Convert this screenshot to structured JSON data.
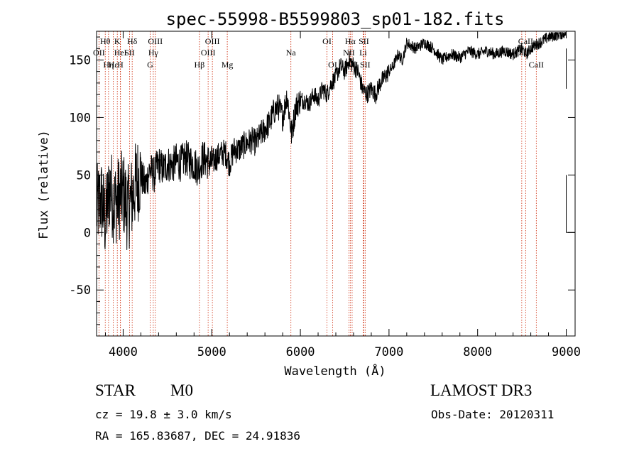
{
  "chart_data": {
    "type": "line",
    "title": "spec-55998-B5599803_sp01-182.fits",
    "xlabel": "Wavelength (Å)",
    "ylabel": "Flux (relative)",
    "xlim": [
      3700,
      9100
    ],
    "ylim": [
      -90,
      175
    ],
    "x_ticks": [
      4000,
      5000,
      6000,
      7000,
      8000,
      9000
    ],
    "y_ticks": [
      -50,
      0,
      50,
      100,
      150
    ],
    "series": [
      {
        "name": "flux",
        "x": [
          3700,
          3750,
          3800,
          3850,
          3900,
          3950,
          4000,
          4050,
          4100,
          4150,
          4200,
          4250,
          4300,
          4350,
          4400,
          4450,
          4500,
          4550,
          4600,
          4650,
          4700,
          4750,
          4800,
          4850,
          4900,
          4950,
          5000,
          5050,
          5100,
          5150,
          5200,
          5250,
          5300,
          5350,
          5400,
          5450,
          5500,
          5550,
          5600,
          5650,
          5700,
          5750,
          5800,
          5850,
          5900,
          5950,
          6000,
          6050,
          6100,
          6150,
          6200,
          6250,
          6300,
          6350,
          6400,
          6450,
          6500,
          6550,
          6600,
          6650,
          6700,
          6750,
          6800,
          6850,
          6900,
          6950,
          7000,
          7050,
          7100,
          7150,
          7200,
          7300,
          7400,
          7500,
          7600,
          7700,
          7800,
          7900,
          8000,
          8100,
          8200,
          8300,
          8400,
          8500,
          8550,
          8600,
          8650,
          8700,
          8800,
          8900,
          8950,
          9000
        ],
        "y": [
          20,
          30,
          10,
          40,
          25,
          30,
          35,
          20,
          30,
          45,
          50,
          40,
          55,
          50,
          60,
          55,
          60,
          58,
          62,
          60,
          65,
          62,
          60,
          55,
          65,
          62,
          60,
          65,
          68,
          70,
          60,
          72,
          72,
          75,
          78,
          80,
          78,
          85,
          90,
          95,
          105,
          110,
          100,
          120,
          85,
          110,
          115,
          115,
          112,
          120,
          115,
          125,
          120,
          130,
          135,
          145,
          140,
          150,
          145,
          140,
          125,
          120,
          125,
          120,
          130,
          135,
          140,
          145,
          155,
          150,
          165,
          160,
          165,
          160,
          150,
          155,
          152,
          158,
          155,
          158,
          155,
          158,
          155,
          160,
          155,
          160,
          163,
          165,
          170,
          172,
          173,
          174
        ]
      }
    ],
    "emission_lines": [
      {
        "label": "Hθ",
        "wavelength": 3798,
        "row": 1
      },
      {
        "label": "OII",
        "wavelength": 3727,
        "row": 2
      },
      {
        "label": "Hε",
        "wavelength": 3889,
        "row": 3
      },
      {
        "label": "Hη",
        "wavelength": 3835,
        "row": 3
      },
      {
        "label": "K",
        "wavelength": 3934,
        "row": 1
      },
      {
        "label": "HeI",
        "wavelength": 3970,
        "row": 2
      },
      {
        "label": "SII",
        "wavelength": 4072,
        "row": 2
      },
      {
        "label": "H",
        "wavelength": 3968,
        "row": 3
      },
      {
        "label": "Hδ",
        "wavelength": 4102,
        "row": 1
      },
      {
        "label": "OIII",
        "wavelength": 4363,
        "row": 1
      },
      {
        "label": "Hγ",
        "wavelength": 4340,
        "row": 2
      },
      {
        "label": "G",
        "wavelength": 4305,
        "row": 3
      },
      {
        "label": "OIII",
        "wavelength": 5007,
        "row": 1
      },
      {
        "label": "OIII",
        "wavelength": 4959,
        "row": 2
      },
      {
        "label": "Hβ",
        "wavelength": 4861,
        "row": 3
      },
      {
        "label": "Mg",
        "wavelength": 5175,
        "row": 3
      },
      {
        "label": "Na",
        "wavelength": 5893,
        "row": 2
      },
      {
        "label": "OI",
        "wavelength": 6300,
        "row": 1
      },
      {
        "label": "OI",
        "wavelength": 6364,
        "row": 3
      },
      {
        "label": "Hα",
        "wavelength": 6563,
        "row": 1
      },
      {
        "label": "SII",
        "wavelength": 6716,
        "row": 1
      },
      {
        "label": "NII",
        "wavelength": 6548,
        "row": 2
      },
      {
        "label": "Li",
        "wavelength": 6708,
        "row": 2
      },
      {
        "label": "NII",
        "wavelength": 6584,
        "row": 3
      },
      {
        "label": "SII",
        "wavelength": 6731,
        "row": 3
      },
      {
        "label": "CaII",
        "wavelength": 8542,
        "row": 1
      },
      {
        "label": "CaII",
        "wavelength": 8498,
        "row": 2
      },
      {
        "label": "CaII",
        "wavelength": 8662,
        "row": 3
      }
    ]
  },
  "info": {
    "object_class": "STAR",
    "subclass": "M0",
    "survey": "LAMOST DR3",
    "cz": "cz = 19.8 ± 3.0 km/s",
    "obs_date": "Obs-Date: 20120311",
    "coords": "RA = 165.83687, DEC =  24.91836"
  },
  "colors": {
    "line": "#000000",
    "marker": "#cc2200",
    "frame": "#000000"
  }
}
